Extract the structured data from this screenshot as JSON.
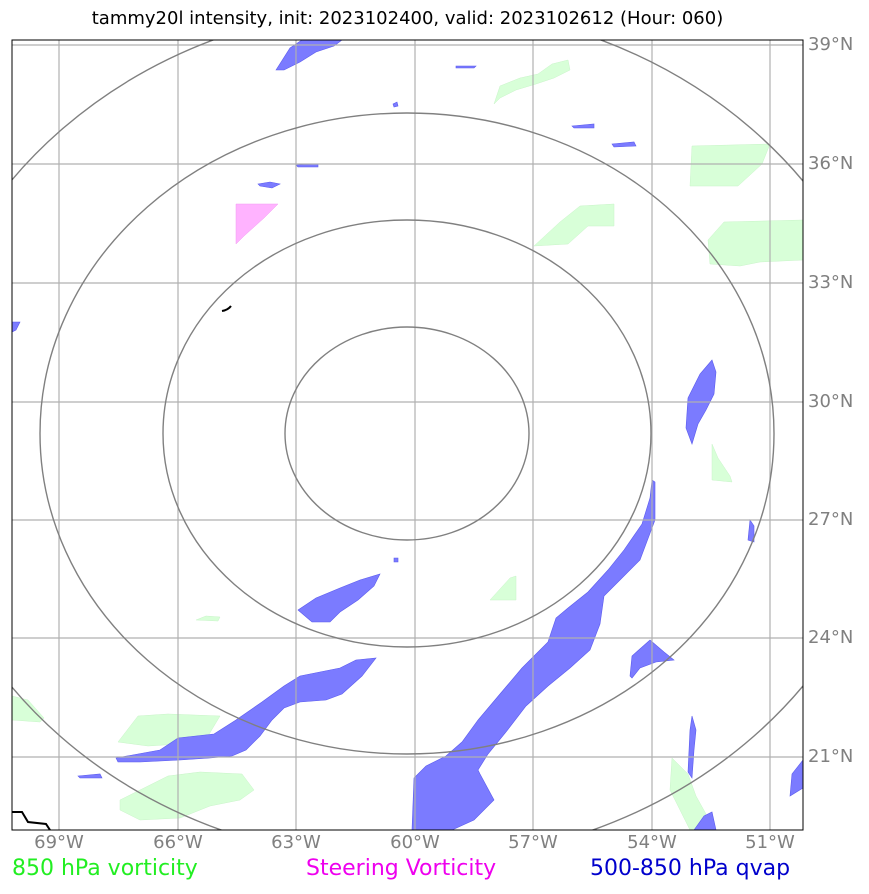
{
  "title": "tammy20l intensity, init: 2023102400, valid: 2023102612 (Hour: 060)",
  "lat_labels": [
    "39°N",
    "36°N",
    "33°N",
    "30°N",
    "27°N",
    "24°N",
    "21°N"
  ],
  "lon_labels": [
    "69°W",
    "66°W",
    "63°W",
    "60°W",
    "57°W",
    "54°W",
    "51°W"
  ],
  "legend": {
    "vorticity_850": "850 hPa vorticity",
    "steering": "Steering Vorticity",
    "qvap": "500-850 hPa qvap"
  },
  "colors": {
    "vorticity_850": "#ccffcc",
    "steering": "#ffb3ff",
    "qvap": "#6666ff",
    "grid": "#b0b0b0",
    "range_rings": "#808080",
    "coastline": "#000000"
  },
  "map": {
    "center_lat": 29.4,
    "center_lon": -60.0,
    "range_rings": 4
  }
}
